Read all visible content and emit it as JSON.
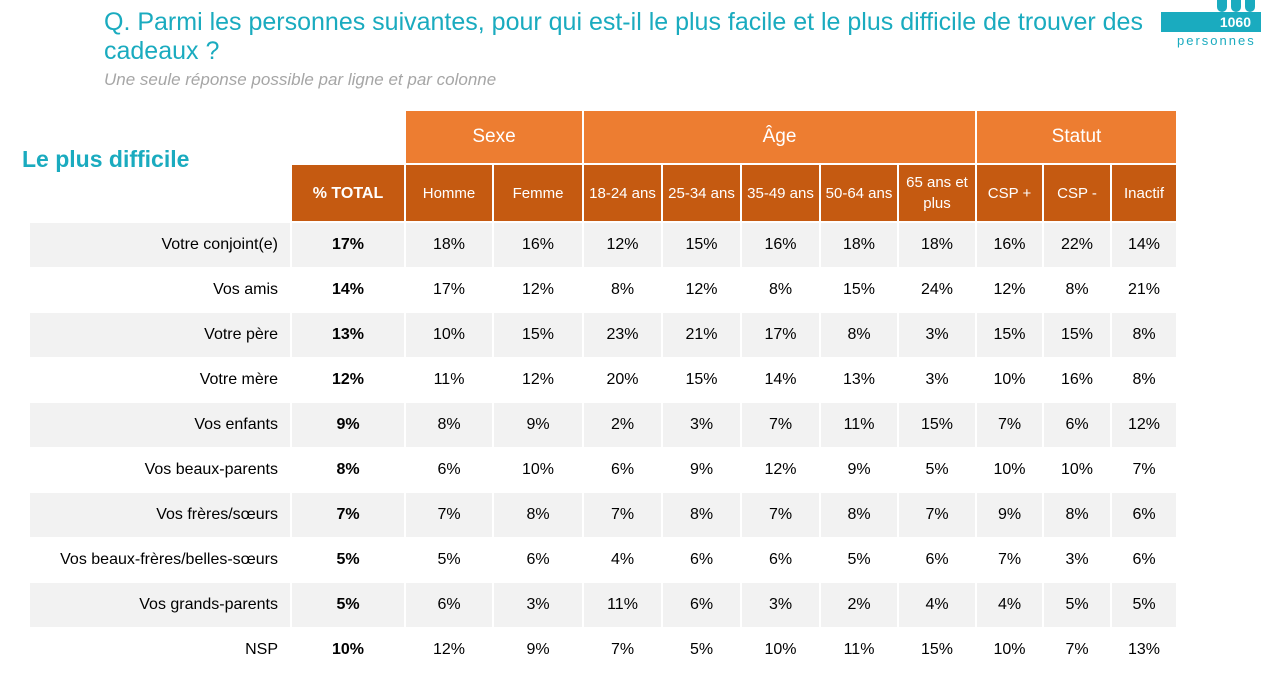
{
  "question": "Q. Parmi les personnes suivantes, pour qui est-il le plus facile et le plus difficile de trouver des cadeaux ?",
  "subtitle": "Une seule réponse possible par ligne et par colonne",
  "badge": {
    "count": "1060",
    "label": "personnes"
  },
  "section_title": "Le plus difficile",
  "colors": {
    "teal": "#1aabbf",
    "orange": "#ed7d31",
    "dark_orange": "#c55a11",
    "row_shade": "#f2f2f2"
  },
  "table": {
    "groups": [
      "Sexe",
      "Âge",
      "Statut"
    ],
    "total_label": "% TOTAL",
    "columns": [
      "Homme",
      "Femme",
      "18-24 ans",
      "25-34 ans",
      "35-49 ans",
      "50-64 ans",
      "65 ans et plus",
      "CSP +",
      "CSP -",
      "Inactif"
    ],
    "rows": [
      {
        "label": "Votre conjoint(e)",
        "total": "17%",
        "values": [
          "18%",
          "16%",
          "12%",
          "15%",
          "16%",
          "18%",
          "18%",
          "16%",
          "22%",
          "14%"
        ]
      },
      {
        "label": "Vos amis",
        "total": "14%",
        "values": [
          "17%",
          "12%",
          "8%",
          "12%",
          "8%",
          "15%",
          "24%",
          "12%",
          "8%",
          "21%"
        ]
      },
      {
        "label": "Votre père",
        "total": "13%",
        "values": [
          "10%",
          "15%",
          "23%",
          "21%",
          "17%",
          "8%",
          "3%",
          "15%",
          "15%",
          "8%"
        ]
      },
      {
        "label": "Votre mère",
        "total": "12%",
        "values": [
          "11%",
          "12%",
          "20%",
          "15%",
          "14%",
          "13%",
          "3%",
          "10%",
          "16%",
          "8%"
        ]
      },
      {
        "label": "Vos enfants",
        "total": "9%",
        "values": [
          "8%",
          "9%",
          "2%",
          "3%",
          "7%",
          "11%",
          "15%",
          "7%",
          "6%",
          "12%"
        ]
      },
      {
        "label": "Vos beaux-parents",
        "total": "8%",
        "values": [
          "6%",
          "10%",
          "6%",
          "9%",
          "12%",
          "9%",
          "5%",
          "10%",
          "10%",
          "7%"
        ]
      },
      {
        "label": "Vos frères/sœurs",
        "total": "7%",
        "values": [
          "7%",
          "8%",
          "7%",
          "8%",
          "7%",
          "8%",
          "7%",
          "9%",
          "8%",
          "6%"
        ]
      },
      {
        "label": "Vos beaux-frères/belles-sœurs",
        "total": "5%",
        "values": [
          "5%",
          "6%",
          "4%",
          "6%",
          "6%",
          "5%",
          "6%",
          "7%",
          "3%",
          "6%"
        ]
      },
      {
        "label": "Vos grands-parents",
        "total": "5%",
        "values": [
          "6%",
          "3%",
          "11%",
          "6%",
          "3%",
          "2%",
          "4%",
          "4%",
          "5%",
          "5%"
        ]
      },
      {
        "label": "NSP",
        "total": "10%",
        "values": [
          "12%",
          "9%",
          "7%",
          "5%",
          "10%",
          "11%",
          "15%",
          "10%",
          "7%",
          "13%"
        ]
      }
    ]
  }
}
